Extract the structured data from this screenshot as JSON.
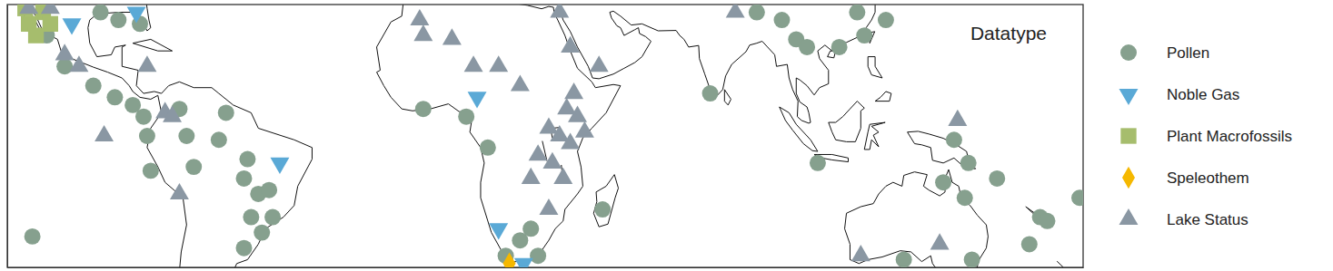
{
  "chart_data": {
    "type": "scatter",
    "title": "Datatype",
    "xlim": [
      -120,
      180
    ],
    "ylim": [
      -36,
      32
    ],
    "tick_labels": false,
    "legend": "right",
    "series": [
      {
        "name": "Pollen",
        "color": "#86a08e",
        "marker": "circle",
        "x": [
          -109,
          -94,
          -89,
          -83,
          -104,
          -96,
          -90,
          -85,
          -82,
          -81,
          -72,
          -70,
          -59,
          -61,
          -68,
          -80,
          -53,
          -54,
          -50,
          -47,
          -52,
          -46,
          -49,
          -54,
          -113,
          -4,
          8,
          14,
          46,
          23,
          19,
          28,
          26,
          89,
          96,
          100,
          103,
          117,
          125,
          119,
          112,
          76,
          106,
          144,
          148,
          141,
          147,
          156,
          168,
          170,
          165,
          149,
          130,
          179
        ],
        "values": [
          24,
          30,
          28,
          27,
          16,
          11,
          8,
          6,
          3,
          -2,
          5,
          -2,
          4,
          -3,
          -10,
          -11,
          -8,
          -13,
          -17,
          -16,
          -23,
          -23,
          -27,
          -31,
          -28,
          5,
          3,
          -5,
          -21,
          -29,
          -33,
          -33,
          -26,
          30,
          28,
          23,
          21,
          30,
          28,
          24,
          21,
          9,
          -9,
          -3,
          -9,
          -14,
          -18,
          -13,
          -23,
          -24,
          -30,
          -34,
          -34,
          -18
        ]
      },
      {
        "name": "Noble Gas",
        "color": "#5aa9d6",
        "marker": "triangle-down",
        "x": [
          -102,
          -84,
          11,
          -44,
          17,
          24
        ],
        "values": [
          27,
          30,
          8,
          -9,
          -26,
          -35
        ]
      },
      {
        "name": "Plant Macrofossils",
        "color": "#a6bd6d",
        "marker": "square",
        "x": [
          -115,
          -110,
          -114,
          -108,
          -112
        ],
        "values": [
          31,
          30,
          27,
          27,
          24
        ]
      },
      {
        "name": "Speleothem",
        "color": "#f5b800",
        "marker": "diamond",
        "x": [
          20
        ],
        "values": [
          -35
        ]
      },
      {
        "name": "Lake Status",
        "color": "#8a97a3",
        "marker": "triangle",
        "x": [
          -114,
          -108,
          -104,
          -100,
          -81,
          -76,
          -74,
          -93,
          -72,
          -5,
          -4,
          4,
          10,
          17,
          23,
          37,
          45,
          34,
          83,
          31,
          34,
          37,
          28,
          32,
          35,
          39,
          41,
          36,
          38,
          26,
          31,
          118,
          140,
          145
        ],
        "values": [
          31,
          31,
          19,
          16,
          16,
          4,
          3,
          -2,
          -17,
          28,
          24,
          23,
          16,
          16,
          11,
          21,
          16,
          30,
          30,
          0,
          -2,
          -4,
          -7,
          -9,
          -13,
          3,
          -1,
          5,
          9,
          -13,
          -21,
          -33,
          -30,
          2
        ]
      }
    ]
  }
}
